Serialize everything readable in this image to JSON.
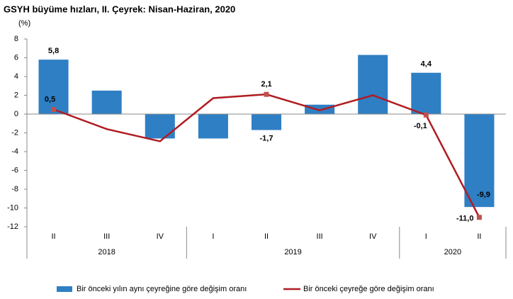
{
  "chart_data": {
    "type": "combo",
    "title": "GSYH büyüme hızları, II. Çeyrek: Nisan-Haziran, 2020",
    "y_unit": "(%)",
    "categories": [
      "II",
      "III",
      "IV",
      "I",
      "II",
      "III",
      "IV",
      "I",
      "II"
    ],
    "years": [
      "2018",
      null,
      null,
      "2019",
      null,
      null,
      null,
      "2020",
      null
    ],
    "ylim": [
      -12,
      8
    ],
    "yticks": [
      -12,
      -10,
      -8,
      -6,
      -4,
      -2,
      0,
      2,
      4,
      6,
      8
    ],
    "legend": "bottom",
    "series": [
      {
        "name": "Bir önceki yılın aynı çeyreğine göre değişim oranı",
        "type": "bar",
        "color": "#2f7fc4",
        "values": [
          5.8,
          2.5,
          -2.6,
          -2.6,
          -1.7,
          1.0,
          6.3,
          4.4,
          -9.9
        ],
        "value_labels": [
          "5,8",
          null,
          null,
          null,
          "-1,7",
          null,
          null,
          "4,4",
          "-9,9"
        ]
      },
      {
        "name": "Bir önceki çeyreğe göre değişim oranı",
        "type": "line",
        "color": "#b01c22",
        "values": [
          0.5,
          -1.6,
          -2.9,
          1.7,
          2.1,
          0.4,
          2.0,
          -0.1,
          -11.0
        ],
        "value_labels": [
          "0,5",
          null,
          null,
          null,
          "2,1",
          null,
          null,
          "-0,1",
          "-11,0"
        ]
      }
    ]
  }
}
